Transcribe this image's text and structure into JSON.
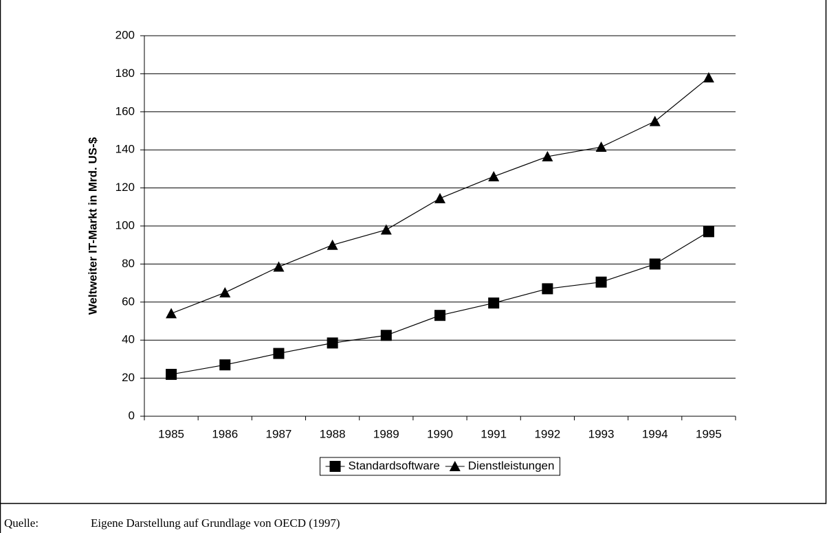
{
  "chart_data": {
    "type": "line",
    "y_label": "Weltweiter IT-Markt in Mrd. US-$",
    "categories": [
      "1985",
      "1986",
      "1987",
      "1988",
      "1989",
      "1990",
      "1991",
      "1992",
      "1993",
      "1994",
      "1995"
    ],
    "series": [
      {
        "name": "Standardsoftware",
        "color": "#000000",
        "marker": "square",
        "values": [
          22,
          27,
          33,
          38.5,
          42.5,
          53,
          59.5,
          67,
          70.5,
          80,
          97
        ]
      },
      {
        "name": "Dienstleistungen",
        "color": "#000000",
        "marker": "triangle",
        "values": [
          54,
          65,
          78.5,
          90,
          98,
          114.5,
          126,
          136.5,
          141.5,
          155,
          178
        ]
      }
    ],
    "ylim": [
      0,
      200
    ],
    "yticks": [
      0,
      20,
      40,
      60,
      80,
      100,
      120,
      140,
      160,
      180,
      200
    ],
    "grid": true,
    "legend": "bottom",
    "source_label": "Quelle:",
    "source": "Eigene Darstellung auf Grundlage von OECD (1997)"
  }
}
